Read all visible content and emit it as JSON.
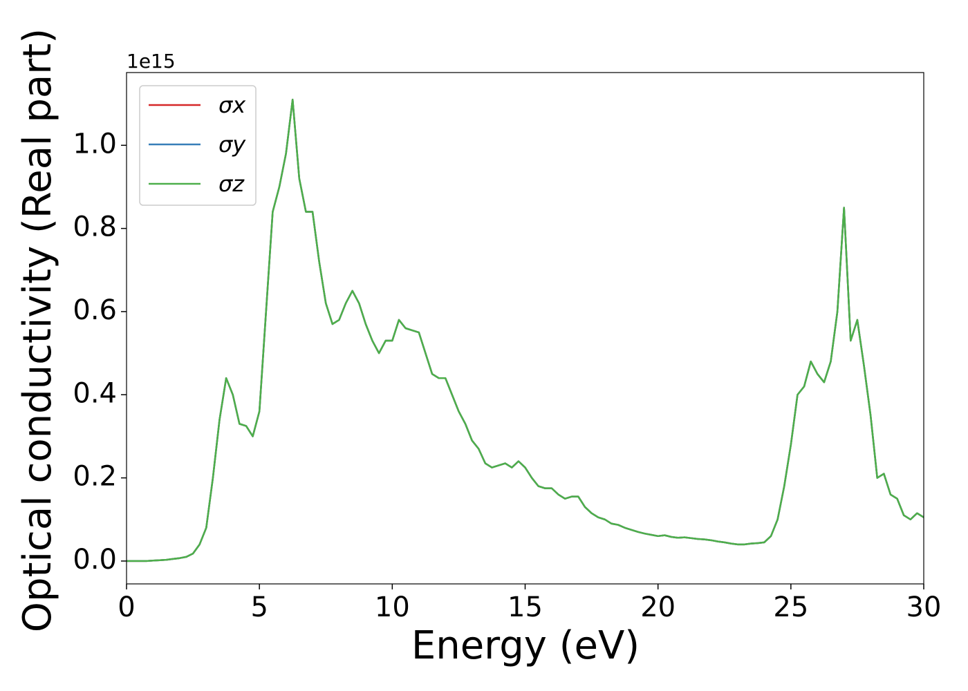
{
  "chart_data": {
    "type": "line",
    "x_label": "Energy (eV)",
    "y_label": "Optical conductivity (Real part)",
    "y_offset_label": "1e15",
    "xlim": [
      0,
      30
    ],
    "xticks": [
      0,
      5,
      10,
      15,
      20,
      25,
      30
    ],
    "ylim": [
      -0.055,
      1.175
    ],
    "yticks": [
      {
        "value": 0,
        "label": "0.0"
      },
      {
        "value": 0.2,
        "label": "0.2"
      },
      {
        "value": 0.4,
        "label": "0.4"
      },
      {
        "value": 0.6,
        "label": "0.6"
      },
      {
        "value": 0.8,
        "label": "0.8"
      },
      {
        "value": 1.0,
        "label": "1.0"
      }
    ],
    "legend": "upper left",
    "grid": false,
    "x": [
      0,
      0.25,
      0.5,
      0.75,
      1,
      1.25,
      1.5,
      1.75,
      2,
      2.25,
      2.5,
      2.75,
      3,
      3.25,
      3.5,
      3.75,
      4,
      4.25,
      4.5,
      4.75,
      5,
      5.25,
      5.5,
      5.75,
      6,
      6.25,
      6.5,
      6.75,
      7,
      7.25,
      7.5,
      7.75,
      8,
      8.25,
      8.5,
      8.75,
      9,
      9.25,
      9.5,
      9.75,
      10,
      10.25,
      10.5,
      10.75,
      11,
      11.25,
      11.5,
      11.75,
      12,
      12.25,
      12.5,
      12.75,
      13,
      13.25,
      13.5,
      13.75,
      14,
      14.25,
      14.5,
      14.75,
      15,
      15.25,
      15.5,
      15.75,
      16,
      16.25,
      16.5,
      16.75,
      17,
      17.25,
      17.5,
      17.75,
      18,
      18.25,
      18.5,
      18.75,
      19,
      19.25,
      19.5,
      19.75,
      20,
      20.25,
      20.5,
      20.75,
      21,
      21.25,
      21.5,
      21.75,
      22,
      22.25,
      22.5,
      22.75,
      23,
      23.25,
      23.5,
      23.75,
      24,
      24.25,
      24.5,
      24.75,
      25,
      25.25,
      25.5,
      25.75,
      26,
      26.25,
      26.5,
      26.75,
      27,
      27.25,
      27.5,
      27.75,
      28,
      28.25,
      28.5,
      28.75,
      29,
      29.25,
      29.5,
      29.75,
      30
    ],
    "series": [
      {
        "name": "σx",
        "color": "#d62728",
        "values": [
          0,
          0,
          0,
          0,
          0.001,
          0.002,
          0.003,
          0.005,
          0.007,
          0.01,
          0.018,
          0.04,
          0.08,
          0.2,
          0.34,
          0.44,
          0.4,
          0.33,
          0.325,
          0.3,
          0.36,
          0.6,
          0.84,
          0.9,
          0.98,
          1.11,
          0.92,
          0.84,
          0.84,
          0.72,
          0.62,
          0.57,
          0.58,
          0.62,
          0.65,
          0.62,
          0.57,
          0.53,
          0.5,
          0.53,
          0.53,
          0.58,
          0.56,
          0.555,
          0.55,
          0.5,
          0.45,
          0.44,
          0.44,
          0.4,
          0.36,
          0.33,
          0.29,
          0.27,
          0.235,
          0.225,
          0.23,
          0.235,
          0.225,
          0.24,
          0.225,
          0.2,
          0.18,
          0.175,
          0.175,
          0.16,
          0.15,
          0.155,
          0.155,
          0.13,
          0.115,
          0.105,
          0.1,
          0.09,
          0.087,
          0.08,
          0.075,
          0.07,
          0.066,
          0.063,
          0.06,
          0.062,
          0.058,
          0.056,
          0.057,
          0.055,
          0.053,
          0.052,
          0.05,
          0.047,
          0.045,
          0.042,
          0.04,
          0.04,
          0.042,
          0.043,
          0.045,
          0.06,
          0.1,
          0.18,
          0.28,
          0.4,
          0.42,
          0.48,
          0.45,
          0.43,
          0.48,
          0.6,
          0.85,
          0.53,
          0.58,
          0.47,
          0.35,
          0.2,
          0.21,
          0.16,
          0.15,
          0.11,
          0.1,
          0.115,
          0.105
        ]
      },
      {
        "name": "σy",
        "color": "#377eb8",
        "values": [
          0,
          0,
          0,
          0,
          0.001,
          0.002,
          0.003,
          0.005,
          0.007,
          0.01,
          0.018,
          0.04,
          0.08,
          0.2,
          0.34,
          0.44,
          0.4,
          0.33,
          0.325,
          0.3,
          0.36,
          0.6,
          0.84,
          0.9,
          0.98,
          1.11,
          0.92,
          0.84,
          0.84,
          0.72,
          0.62,
          0.57,
          0.58,
          0.62,
          0.65,
          0.62,
          0.57,
          0.53,
          0.5,
          0.53,
          0.53,
          0.58,
          0.56,
          0.555,
          0.55,
          0.5,
          0.45,
          0.44,
          0.44,
          0.4,
          0.36,
          0.33,
          0.29,
          0.27,
          0.235,
          0.225,
          0.23,
          0.235,
          0.225,
          0.24,
          0.225,
          0.2,
          0.18,
          0.175,
          0.175,
          0.16,
          0.15,
          0.155,
          0.155,
          0.13,
          0.115,
          0.105,
          0.1,
          0.09,
          0.087,
          0.08,
          0.075,
          0.07,
          0.066,
          0.063,
          0.06,
          0.062,
          0.058,
          0.056,
          0.057,
          0.055,
          0.053,
          0.052,
          0.05,
          0.047,
          0.045,
          0.042,
          0.04,
          0.04,
          0.042,
          0.043,
          0.045,
          0.06,
          0.1,
          0.18,
          0.28,
          0.4,
          0.42,
          0.48,
          0.45,
          0.43,
          0.48,
          0.6,
          0.85,
          0.53,
          0.58,
          0.47,
          0.35,
          0.2,
          0.21,
          0.16,
          0.15,
          0.11,
          0.1,
          0.115,
          0.105
        ]
      },
      {
        "name": "σz",
        "color": "#4daf4a",
        "values": [
          0,
          0,
          0,
          0,
          0.001,
          0.002,
          0.003,
          0.005,
          0.007,
          0.01,
          0.018,
          0.04,
          0.08,
          0.2,
          0.34,
          0.44,
          0.4,
          0.33,
          0.325,
          0.3,
          0.36,
          0.6,
          0.84,
          0.9,
          0.98,
          1.11,
          0.92,
          0.84,
          0.84,
          0.72,
          0.62,
          0.57,
          0.58,
          0.62,
          0.65,
          0.62,
          0.57,
          0.53,
          0.5,
          0.53,
          0.53,
          0.58,
          0.56,
          0.555,
          0.55,
          0.5,
          0.45,
          0.44,
          0.44,
          0.4,
          0.36,
          0.33,
          0.29,
          0.27,
          0.235,
          0.225,
          0.23,
          0.235,
          0.225,
          0.24,
          0.225,
          0.2,
          0.18,
          0.175,
          0.175,
          0.16,
          0.15,
          0.155,
          0.155,
          0.13,
          0.115,
          0.105,
          0.1,
          0.09,
          0.087,
          0.08,
          0.075,
          0.07,
          0.066,
          0.063,
          0.06,
          0.062,
          0.058,
          0.056,
          0.057,
          0.055,
          0.053,
          0.052,
          0.05,
          0.047,
          0.045,
          0.042,
          0.04,
          0.04,
          0.042,
          0.043,
          0.045,
          0.06,
          0.1,
          0.18,
          0.28,
          0.4,
          0.42,
          0.48,
          0.45,
          0.43,
          0.48,
          0.6,
          0.85,
          0.53,
          0.58,
          0.47,
          0.35,
          0.2,
          0.21,
          0.16,
          0.15,
          0.11,
          0.1,
          0.115,
          0.105
        ]
      }
    ]
  }
}
